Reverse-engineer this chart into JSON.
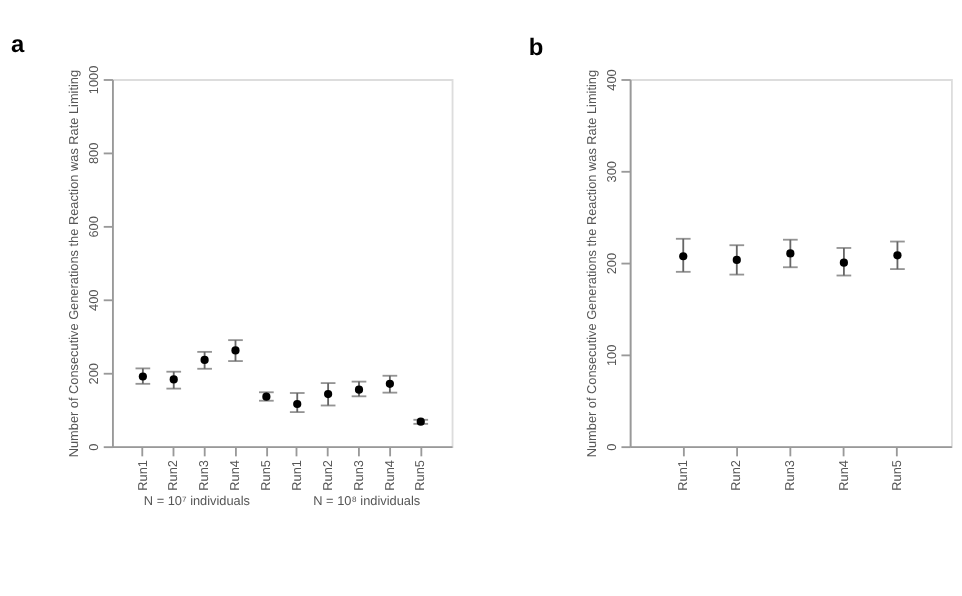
{
  "chart_data": [
    {
      "type": "scatter",
      "title": "a",
      "ylabel": "Number of Consecutive Generations the Reaction was Rate Limiting",
      "categories": [
        "Run1",
        "Run2",
        "Run3",
        "Run4",
        "Run5",
        "Run1",
        "Run2",
        "Run3",
        "Run4",
        "Run5"
      ],
      "values": [
        190,
        182,
        235,
        261,
        135,
        115,
        142,
        154,
        170,
        67
      ],
      "errors": [
        [
          170,
          212
        ],
        [
          157,
          203
        ],
        [
          211,
          257
        ],
        [
          232,
          289
        ],
        [
          124,
          147
        ],
        [
          93,
          145
        ],
        [
          111,
          172
        ],
        [
          136,
          176
        ],
        [
          146,
          192
        ],
        [
          61,
          72
        ]
      ],
      "color": "#000000",
      "marker": "circle",
      "ylim": [
        0,
        1000
      ],
      "yticks": [
        0,
        200,
        400,
        600,
        800,
        1000
      ],
      "grid": false,
      "annotations": [
        "N = 10⁷ individuals",
        "N = 10⁸ individuals"
      ]
    },
    {
      "type": "scatter",
      "title": "b",
      "ylabel": "Number of Consecutive Generations the Reaction was Rate Limiting",
      "categories": [
        "Run1",
        "Run2",
        "Run3",
        "Run4",
        "Run5"
      ],
      "values": [
        207,
        203,
        210,
        200,
        208
      ],
      "errors": [
        [
          190,
          226
        ],
        [
          187,
          219
        ],
        [
          195,
          225
        ],
        [
          186,
          216
        ],
        [
          193,
          223
        ]
      ],
      "color": "#000000",
      "marker": "circle",
      "ylim": [
        0,
        400
      ],
      "yticks": [
        0,
        100,
        200,
        300,
        400
      ],
      "grid": false
    }
  ]
}
